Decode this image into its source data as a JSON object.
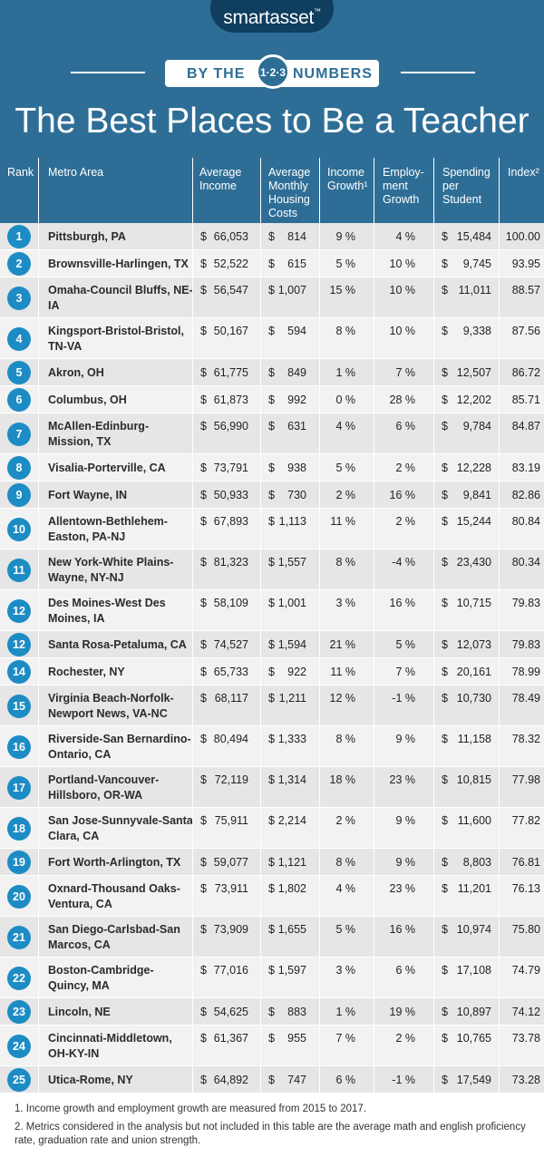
{
  "brand": {
    "name": "smartasset",
    "tm": "™"
  },
  "banner": {
    "left": "BY THE",
    "middle": "1·2·3",
    "right": "NUMBERS"
  },
  "title": "The Best Places to Be a Teacher",
  "colors": {
    "header_bg": "#2e6e96",
    "rank_badge": "#1d8cc4",
    "row_odd": "#e6e6e6",
    "row_even": "#f2f2f2"
  },
  "chart_data": {
    "type": "table",
    "columns": [
      {
        "key": "rank",
        "label": "Rank"
      },
      {
        "key": "metro",
        "label": "Metro Area"
      },
      {
        "key": "income",
        "label": "Average Income"
      },
      {
        "key": "housing",
        "label": "Average Monthly Housing Costs"
      },
      {
        "key": "income_growth",
        "label": "Income Growth¹"
      },
      {
        "key": "employment_growth",
        "label": "Employ-ment Growth"
      },
      {
        "key": "spending",
        "label": "Spending per Student"
      },
      {
        "key": "index",
        "label": "Index²"
      }
    ],
    "rows": [
      {
        "rank": "1",
        "metro": "Pittsburgh, PA",
        "income": "66,053",
        "housing": "814",
        "income_growth": "9 %",
        "employment_growth": "4 %",
        "spending": "15,484",
        "index": "100.00"
      },
      {
        "rank": "2",
        "metro": "Brownsville-Harlingen, TX",
        "income": "52,522",
        "housing": "615",
        "income_growth": "5 %",
        "employment_growth": "10 %",
        "spending": "9,745",
        "index": "93.95"
      },
      {
        "rank": "3",
        "metro": "Omaha-Council Bluffs, NE-IA",
        "income": "56,547",
        "housing": "1,007",
        "income_growth": "15 %",
        "employment_growth": "10 %",
        "spending": "11,011",
        "index": "88.57"
      },
      {
        "rank": "4",
        "metro": "Kingsport-Bristol-Bristol, TN-VA",
        "income": "50,167",
        "housing": "594",
        "income_growth": "8 %",
        "employment_growth": "10 %",
        "spending": "9,338",
        "index": "87.56"
      },
      {
        "rank": "5",
        "metro": "Akron, OH",
        "income": "61,775",
        "housing": "849",
        "income_growth": "1 %",
        "employment_growth": "7 %",
        "spending": "12,507",
        "index": "86.72"
      },
      {
        "rank": "6",
        "metro": "Columbus, OH",
        "income": "61,873",
        "housing": "992",
        "income_growth": "0 %",
        "employment_growth": "28 %",
        "spending": "12,202",
        "index": "85.71"
      },
      {
        "rank": "7",
        "metro": "McAllen-Edinburg-Mission, TX",
        "income": "56,990",
        "housing": "631",
        "income_growth": "4 %",
        "employment_growth": "6 %",
        "spending": "9,784",
        "index": "84.87"
      },
      {
        "rank": "8",
        "metro": "Visalia-Porterville, CA",
        "income": "73,791",
        "housing": "938",
        "income_growth": "5 %",
        "employment_growth": "2 %",
        "spending": "12,228",
        "index": "83.19"
      },
      {
        "rank": "9",
        "metro": "Fort Wayne, IN",
        "income": "50,933",
        "housing": "730",
        "income_growth": "2 %",
        "employment_growth": "16 %",
        "spending": "9,841",
        "index": "82.86"
      },
      {
        "rank": "10",
        "metro": "Allentown-Bethlehem-Easton, PA-NJ",
        "income": "67,893",
        "housing": "1,113",
        "income_growth": "11 %",
        "employment_growth": "2 %",
        "spending": "15,244",
        "index": "80.84"
      },
      {
        "rank": "11",
        "metro": "New York-White Plains-Wayne, NY-NJ",
        "income": "81,323",
        "housing": "1,557",
        "income_growth": "8 %",
        "employment_growth": "-4 %",
        "spending": "23,430",
        "index": "80.34"
      },
      {
        "rank": "12",
        "metro": "Des Moines-West Des Moines, IA",
        "income": "58,109",
        "housing": "1,001",
        "income_growth": "3 %",
        "employment_growth": "16 %",
        "spending": "10,715",
        "index": "79.83"
      },
      {
        "rank": "12",
        "metro": "Santa Rosa-Petaluma, CA",
        "income": "74,527",
        "housing": "1,594",
        "income_growth": "21 %",
        "employment_growth": "5 %",
        "spending": "12,073",
        "index": "79.83"
      },
      {
        "rank": "14",
        "metro": "Rochester, NY",
        "income": "65,733",
        "housing": "922",
        "income_growth": "11 %",
        "employment_growth": "7 %",
        "spending": "20,161",
        "index": "78.99"
      },
      {
        "rank": "15",
        "metro": "Virginia Beach-Norfolk-Newport News, VA-NC",
        "income": "68,117",
        "housing": "1,211",
        "income_growth": "12 %",
        "employment_growth": "-1 %",
        "spending": "10,730",
        "index": "78.49"
      },
      {
        "rank": "16",
        "metro": "Riverside-San Bernardino-Ontario, CA",
        "income": "80,494",
        "housing": "1,333",
        "income_growth": "8 %",
        "employment_growth": "9 %",
        "spending": "11,158",
        "index": "78.32"
      },
      {
        "rank": "17",
        "metro": "Portland-Vancouver-Hillsboro, OR-WA",
        "income": "72,119",
        "housing": "1,314",
        "income_growth": "18 %",
        "employment_growth": "23 %",
        "spending": "10,815",
        "index": "77.98"
      },
      {
        "rank": "18",
        "metro": "San Jose-Sunnyvale-Santa Clara, CA",
        "income": "75,911",
        "housing": "2,214",
        "income_growth": "2 %",
        "employment_growth": "9 %",
        "spending": "11,600",
        "index": "77.82"
      },
      {
        "rank": "19",
        "metro": "Fort Worth-Arlington, TX",
        "income": "59,077",
        "housing": "1,121",
        "income_growth": "8 %",
        "employment_growth": "9 %",
        "spending": "8,803",
        "index": "76.81"
      },
      {
        "rank": "20",
        "metro": "Oxnard-Thousand Oaks-Ventura, CA",
        "income": "73,911",
        "housing": "1,802",
        "income_growth": "4 %",
        "employment_growth": "23 %",
        "spending": "11,201",
        "index": "76.13"
      },
      {
        "rank": "21",
        "metro": "San Diego-Carlsbad-San Marcos, CA",
        "income": "73,909",
        "housing": "1,655",
        "income_growth": "5 %",
        "employment_growth": "16 %",
        "spending": "10,974",
        "index": "75.80"
      },
      {
        "rank": "22",
        "metro": "Boston-Cambridge-Quincy, MA",
        "income": "77,016",
        "housing": "1,597",
        "income_growth": "3 %",
        "employment_growth": "6 %",
        "spending": "17,108",
        "index": "74.79"
      },
      {
        "rank": "23",
        "metro": "Lincoln, NE",
        "income": "54,625",
        "housing": "883",
        "income_growth": "1 %",
        "employment_growth": "19 %",
        "spending": "10,897",
        "index": "74.12"
      },
      {
        "rank": "24",
        "metro": "Cincinnati-Middletown, OH-KY-IN",
        "income": "61,367",
        "housing": "955",
        "income_growth": "7 %",
        "employment_growth": "2 %",
        "spending": "10,765",
        "index": "73.78"
      },
      {
        "rank": "25",
        "metro": "Utica-Rome, NY",
        "income": "64,892",
        "housing": "747",
        "income_growth": "6 %",
        "employment_growth": "-1 %",
        "spending": "17,549",
        "index": "73.28"
      }
    ]
  },
  "footnotes": [
    "1.  Income growth and employment growth are measured from 2015 to 2017.",
    "2.  Metrics considered in the analysis but not included in this table are the average math and english proficiency rate, graduation rate and union strength."
  ],
  "currency_symbol": "$"
}
